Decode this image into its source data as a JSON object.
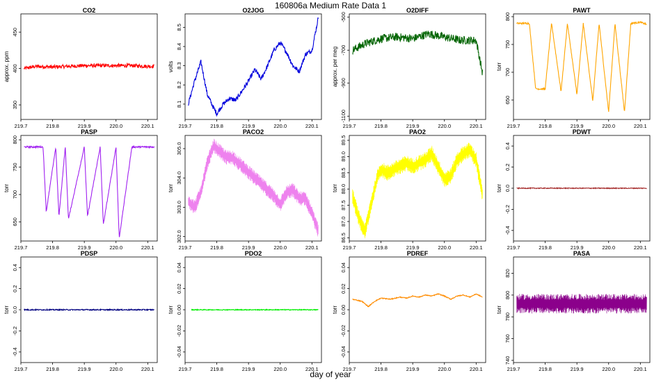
{
  "figure": {
    "title": "160806a   Medium Rate Data 1",
    "xlabel": "day of year"
  },
  "chart_data": [
    {
      "type": "line",
      "title": "CO2",
      "ylabel": "approx. ppm",
      "color": "#ff0000",
      "xlim": [
        219.7,
        220.13
      ],
      "ylim": [
        330,
        475
      ],
      "xticks": [
        219.7,
        219.8,
        219.9,
        220.0,
        220.1
      ],
      "xtick_labels": [
        "219.7",
        "219.8",
        "219.9",
        "220.0",
        "220.1"
      ],
      "yticks": [
        350,
        400,
        450
      ],
      "ytick_labels": [
        "350",
        "400",
        "450"
      ],
      "series": [
        {
          "name": "CO2",
          "x": [
            219.71,
            219.75,
            219.8,
            219.85,
            219.9,
            219.95,
            220.0,
            220.05,
            220.1,
            220.12
          ],
          "values": [
            400,
            403,
            402,
            403,
            404,
            404,
            404,
            404,
            403,
            403
          ]
        }
      ]
    },
    {
      "type": "line",
      "title": "O2JOG",
      "ylabel": "volts",
      "color": "#0000dd",
      "xlim": [
        219.7,
        220.13
      ],
      "ylim": [
        8.02,
        8.57
      ],
      "xticks": [
        219.7,
        219.8,
        219.9,
        220.0,
        220.1
      ],
      "xtick_labels": [
        "219.7",
        "219.8",
        "219.9",
        "220.0",
        "220.1"
      ],
      "yticks": [
        8.1,
        8.2,
        8.3,
        8.4,
        8.5
      ],
      "ytick_labels": [
        "8.1",
        "8.2",
        "8.3",
        "8.4",
        "8.5"
      ],
      "series": [
        {
          "name": "O2JOG",
          "x": [
            219.71,
            219.73,
            219.75,
            219.77,
            219.79,
            219.8,
            219.82,
            219.84,
            219.86,
            219.88,
            219.9,
            219.92,
            219.94,
            219.96,
            219.98,
            220.0,
            220.02,
            220.04,
            220.06,
            220.08,
            220.1,
            220.12
          ],
          "values": [
            8.1,
            8.22,
            8.32,
            8.15,
            8.08,
            8.05,
            8.1,
            8.13,
            8.12,
            8.17,
            8.22,
            8.28,
            8.23,
            8.3,
            8.38,
            8.42,
            8.37,
            8.3,
            8.27,
            8.36,
            8.38,
            8.55
          ]
        }
      ]
    },
    {
      "type": "line",
      "title": "O2DIFF",
      "ylabel": "approx. per meg",
      "color": "#006400",
      "xlim": [
        219.7,
        220.13
      ],
      "ylim": [
        -1120,
        -480
      ],
      "xticks": [
        219.7,
        219.8,
        219.9,
        220.0,
        220.1
      ],
      "xtick_labels": [
        "219.7",
        "219.8",
        "219.9",
        "220.0",
        "220.1"
      ],
      "yticks": [
        -1100,
        -900,
        -700,
        -500
      ],
      "ytick_labels": [
        "-1100",
        "-900",
        "-700",
        "-500"
      ],
      "series": [
        {
          "name": "O2DIFF",
          "x": [
            219.71,
            219.75,
            219.8,
            219.85,
            219.9,
            219.95,
            220.0,
            220.05,
            220.1,
            220.12
          ],
          "values": [
            -700,
            -660,
            -630,
            -620,
            -630,
            -600,
            -620,
            -640,
            -640,
            -840
          ]
        }
      ]
    },
    {
      "type": "line",
      "title": "PAWT",
      "ylabel": "torr",
      "color": "#ffa500",
      "xlim": [
        219.7,
        220.13
      ],
      "ylim": [
        615,
        805
      ],
      "xticks": [
        219.7,
        219.8,
        219.9,
        220.0,
        220.1
      ],
      "xtick_labels": [
        "219.7",
        "219.8",
        "219.9",
        "220.0",
        "220.1"
      ],
      "yticks": [
        650,
        700,
        750,
        800
      ],
      "ytick_labels": [
        "650",
        "700",
        "750",
        "800"
      ],
      "series": [
        {
          "name": "PAWT",
          "x": [
            219.71,
            219.75,
            219.77,
            219.8,
            219.82,
            219.85,
            219.87,
            219.9,
            219.92,
            219.95,
            219.97,
            220.0,
            220.02,
            220.05,
            220.07,
            220.1,
            220.12
          ],
          "values": [
            788,
            788,
            670,
            670,
            788,
            665,
            788,
            660,
            788,
            648,
            788,
            628,
            788,
            628,
            788,
            790,
            786
          ]
        }
      ]
    },
    {
      "type": "line",
      "title": "PASP",
      "ylabel": "torr",
      "color": "#a020f0",
      "xlim": [
        219.7,
        220.13
      ],
      "ylim": [
        615,
        808
      ],
      "xticks": [
        219.7,
        219.8,
        219.9,
        220.0,
        220.1
      ],
      "xtick_labels": [
        "219.7",
        "219.8",
        "219.9",
        "220.0",
        "220.1"
      ],
      "yticks": [
        650,
        700,
        750,
        800
      ],
      "ytick_labels": [
        "650",
        "700",
        "750",
        "800"
      ],
      "series": [
        {
          "name": "PASP",
          "x": [
            219.71,
            219.77,
            219.78,
            219.81,
            219.82,
            219.84,
            219.85,
            219.9,
            219.91,
            219.95,
            219.96,
            220.0,
            220.01,
            220.05,
            220.1,
            220.12
          ],
          "values": [
            787,
            787,
            668,
            787,
            660,
            787,
            655,
            787,
            660,
            787,
            645,
            787,
            620,
            787,
            787,
            787
          ]
        }
      ]
    },
    {
      "type": "area",
      "title": "PACO2",
      "ylabel": "torr",
      "color": "#ee82ee",
      "xlim": [
        219.7,
        220.13
      ],
      "ylim": [
        301.85,
        305.45
      ],
      "xticks": [
        219.7,
        219.8,
        219.9,
        220.0,
        220.1
      ],
      "xtick_labels": [
        "219.7",
        "219.8",
        "219.9",
        "220.0",
        "220.1"
      ],
      "yticks": [
        302.0,
        303.0,
        304.0,
        305.0
      ],
      "ytick_labels": [
        "302.0",
        "303.0",
        "304.0",
        "305.0"
      ],
      "series": [
        {
          "name": "PACO2",
          "x": [
            219.71,
            219.73,
            219.75,
            219.77,
            219.79,
            219.81,
            219.83,
            219.85,
            219.87,
            219.9,
            219.93,
            219.96,
            219.98,
            220.0,
            220.02,
            220.04,
            220.06,
            220.08,
            220.1,
            220.12
          ],
          "values": [
            303.2,
            303.0,
            303.5,
            304.5,
            305.1,
            304.9,
            304.7,
            304.7,
            304.5,
            304.2,
            303.9,
            303.6,
            303.4,
            303.1,
            303.5,
            303.6,
            303.3,
            303.3,
            302.8,
            302.2
          ]
        }
      ]
    },
    {
      "type": "area",
      "title": "PAO2",
      "ylabel": "torr",
      "color": "#ffff00",
      "xlim": [
        219.7,
        220.13
      ],
      "ylim": [
        86.4,
        89.65
      ],
      "xticks": [
        219.7,
        219.8,
        219.9,
        220.0,
        220.1
      ],
      "xtick_labels": [
        "219.7",
        "219.8",
        "219.9",
        "220.0",
        "220.1"
      ],
      "yticks": [
        86.5,
        87.0,
        87.5,
        88.0,
        88.5,
        89.0,
        89.5
      ],
      "ytick_labels": [
        "86.5",
        "87.0",
        "87.5",
        "88.0",
        "88.5",
        "89.0",
        "89.5"
      ],
      "series": [
        {
          "name": "PAO2",
          "x": [
            219.71,
            219.73,
            219.75,
            219.77,
            219.79,
            219.8,
            219.82,
            219.84,
            219.86,
            219.88,
            219.9,
            219.92,
            219.94,
            219.96,
            219.98,
            220.0,
            220.02,
            220.04,
            220.06,
            220.08,
            220.1,
            220.12
          ],
          "values": [
            87.8,
            87.1,
            86.7,
            87.6,
            88.4,
            88.6,
            88.5,
            88.6,
            88.7,
            88.8,
            88.7,
            88.8,
            88.9,
            89.1,
            88.7,
            88.3,
            88.4,
            88.9,
            89.1,
            89.2,
            88.9,
            87.8
          ]
        }
      ]
    },
    {
      "type": "line",
      "title": "PDWT",
      "ylabel": "torr",
      "color": "#a52a2a",
      "xlim": [
        219.7,
        220.13
      ],
      "ylim": [
        -0.5,
        0.5
      ],
      "xticks": [
        219.7,
        219.8,
        219.9,
        220.0,
        220.1
      ],
      "xtick_labels": [
        "219.7",
        "219.8",
        "219.9",
        "220.0",
        "220.1"
      ],
      "yticks": [
        -0.4,
        -0.2,
        0.0,
        0.2,
        0.4
      ],
      "ytick_labels": [
        "-0.4",
        "-0.2",
        "0.0",
        "0.2",
        "0.4"
      ],
      "series": [
        {
          "name": "PDWT",
          "x": [
            219.71,
            220.12
          ],
          "values": [
            0.0,
            0.0
          ]
        }
      ]
    },
    {
      "type": "line",
      "title": "PDSP",
      "ylabel": "torr",
      "color": "#000080",
      "xlim": [
        219.7,
        220.13
      ],
      "ylim": [
        -0.5,
        0.5
      ],
      "xticks": [
        219.7,
        219.8,
        219.9,
        220.0,
        220.1
      ],
      "xtick_labels": [
        "219.7",
        "219.8",
        "219.9",
        "220.0",
        "220.1"
      ],
      "yticks": [
        -0.4,
        -0.2,
        0.0,
        0.2,
        0.4
      ],
      "ytick_labels": [
        "-0.4",
        "-0.2",
        "0.0",
        "0.2",
        "0.4"
      ],
      "series": [
        {
          "name": "PDSP",
          "x": [
            219.71,
            220.12
          ],
          "values": [
            0.0,
            0.0
          ]
        }
      ]
    },
    {
      "type": "line",
      "title": "PDO2",
      "ylabel": "torr",
      "color": "#00ee00",
      "xlim": [
        219.7,
        220.13
      ],
      "ylim": [
        -0.05,
        0.05
      ],
      "xticks": [
        219.7,
        219.8,
        219.9,
        220.0,
        220.1
      ],
      "xtick_labels": [
        "219.7",
        "219.8",
        "219.9",
        "220.0",
        "220.1"
      ],
      "yticks": [
        -0.04,
        -0.02,
        0.0,
        0.02,
        0.04
      ],
      "ytick_labels": [
        "-0.04",
        "-0.02",
        "0.00",
        "0.02",
        "0.04"
      ],
      "series": [
        {
          "name": "PDO2",
          "x": [
            219.72,
            220.12
          ],
          "values": [
            0.0,
            0.0
          ]
        }
      ]
    },
    {
      "type": "line",
      "title": "PDREF",
      "ylabel": "torr",
      "color": "#ff8c00",
      "xlim": [
        219.7,
        220.13
      ],
      "ylim": [
        -0.05,
        0.05
      ],
      "xticks": [
        219.7,
        219.8,
        219.9,
        220.0,
        220.1
      ],
      "xtick_labels": [
        "219.7",
        "219.8",
        "219.9",
        "220.0",
        "220.1"
      ],
      "yticks": [
        -0.04,
        -0.02,
        0.0,
        0.02,
        0.04
      ],
      "ytick_labels": [
        "-0.04",
        "-0.02",
        "0.00",
        "0.02",
        "0.04"
      ],
      "series": [
        {
          "name": "PDREF",
          "x": [
            219.71,
            219.74,
            219.76,
            219.78,
            219.8,
            219.83,
            219.86,
            219.88,
            219.9,
            219.92,
            219.94,
            219.96,
            219.98,
            220.0,
            220.02,
            220.04,
            220.06,
            220.08,
            220.1,
            220.12
          ],
          "values": [
            0.01,
            0.008,
            0.003,
            0.008,
            0.011,
            0.01,
            0.012,
            0.011,
            0.013,
            0.012,
            0.014,
            0.013,
            0.015,
            0.013,
            0.01,
            0.013,
            0.014,
            0.012,
            0.015,
            0.012
          ]
        }
      ]
    },
    {
      "type": "area",
      "title": "PASA",
      "ylabel": "torr",
      "color": "#8b008b",
      "xlim": [
        219.7,
        220.13
      ],
      "ylim": [
        738,
        835
      ],
      "xticks": [
        219.7,
        219.8,
        219.9,
        220.0,
        220.1
      ],
      "xtick_labels": [
        "219.7",
        "219.8",
        "219.9",
        "220.0",
        "220.1"
      ],
      "yticks": [
        740,
        760,
        780,
        800,
        820
      ],
      "ytick_labels": [
        "740",
        "760",
        "780",
        "800",
        "820"
      ],
      "series": [
        {
          "name": "PASA",
          "x": [
            219.71,
            219.8,
            219.9,
            220.0,
            220.12
          ],
          "values": [
            792,
            792,
            792,
            792,
            792
          ]
        }
      ]
    }
  ]
}
